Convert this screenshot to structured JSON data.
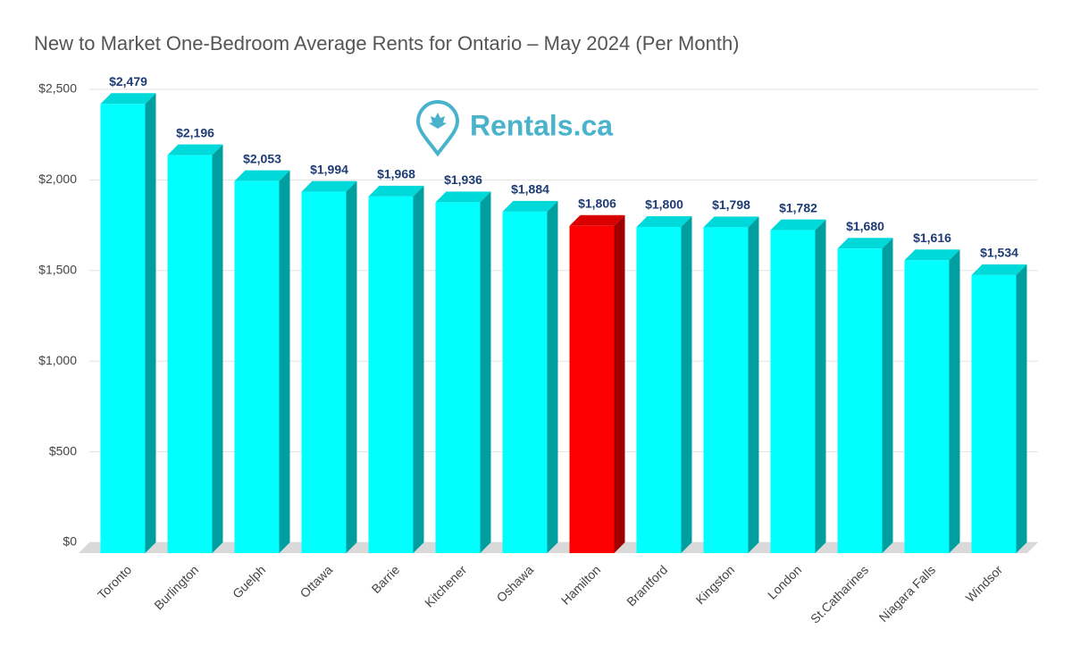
{
  "chart_data": {
    "type": "bar3d",
    "title": "New to Market One-Bedroom Average Rents for Ontario – May 2024  (Per Month)",
    "watermark": "Rentals.ca",
    "categories": [
      "Toronto",
      "Burlington",
      "Guelph",
      "Ottawa",
      "Barrie",
      "Kitchener",
      "Oshawa",
      "Hamilton",
      "Brantford",
      "Kingston",
      "London",
      "St.Catharines",
      "Niagara Falls",
      "Windsor"
    ],
    "values": [
      2479,
      2196,
      2053,
      1994,
      1968,
      1936,
      1884,
      1806,
      1800,
      1798,
      1782,
      1680,
      1616,
      1534
    ],
    "value_labels": [
      "$2,479",
      "$2,196",
      "$2,053",
      "$1,994",
      "$1,968",
      "$1,936",
      "$1,884",
      "$1,806",
      "$1,800",
      "$1,798",
      "$1,782",
      "$1,680",
      "$1,616",
      "$1,534"
    ],
    "colors": [
      "#00ffff",
      "#00ffff",
      "#00ffff",
      "#00ffff",
      "#00ffff",
      "#00ffff",
      "#00ffff",
      "#ff0000",
      "#00ffff",
      "#00ffff",
      "#00ffff",
      "#00ffff",
      "#00ffff",
      "#00ffff"
    ],
    "ylim": [
      0,
      2500
    ],
    "yticks": [
      {
        "value": 0,
        "label": "$0"
      },
      {
        "value": 500,
        "label": "$500"
      },
      {
        "value": 1000,
        "label": "$1,000"
      },
      {
        "value": 1500,
        "label": "$1,500"
      },
      {
        "value": 2000,
        "label": "$2,000"
      },
      {
        "value": 2500,
        "label": "$2,500"
      }
    ],
    "grid": true
  }
}
